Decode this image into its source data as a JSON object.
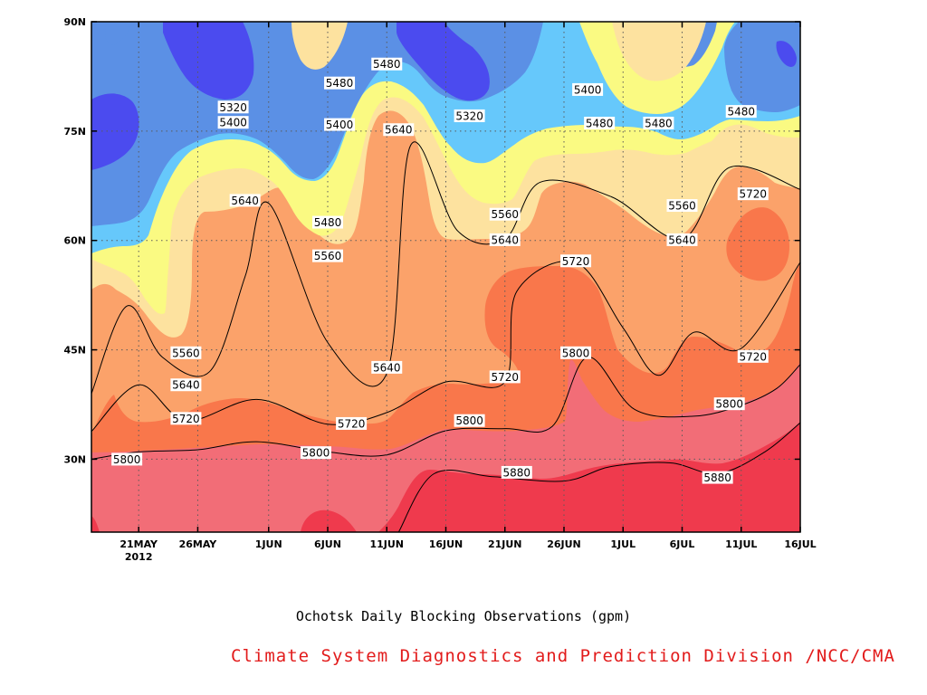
{
  "chart_data": {
    "type": "heatmap",
    "subtype": "filled-contour (time-latitude Hovmoller)",
    "title": "Ochotsk Daily Blocking Observations (gpm)",
    "credit": "Climate System Diagnostics and Prediction Division /NCC/CMA",
    "xlabel": "",
    "ylabel": "",
    "x_range": [
      "2012-05-17",
      "2012-07-16"
    ],
    "y_range": [
      20,
      90
    ],
    "x_ticks": [
      {
        "label": "21MAY",
        "sublabel": "2012",
        "date": "2012-05-21"
      },
      {
        "label": "26MAY",
        "date": "2012-05-26"
      },
      {
        "label": "1JUN",
        "date": "2012-06-01"
      },
      {
        "label": "6JUN",
        "date": "2012-06-06"
      },
      {
        "label": "11JUN",
        "date": "2012-06-11"
      },
      {
        "label": "16JUN",
        "date": "2012-06-16"
      },
      {
        "label": "21JUN",
        "date": "2012-06-21"
      },
      {
        "label": "26JUN",
        "date": "2012-06-26"
      },
      {
        "label": "1JUL",
        "date": "2012-07-01"
      },
      {
        "label": "6JUL",
        "date": "2012-07-06"
      },
      {
        "label": "11JUL",
        "date": "2012-07-11"
      },
      {
        "label": "16JUL",
        "date": "2012-07-16"
      }
    ],
    "y_ticks": [
      {
        "label": "30N",
        "value": 30
      },
      {
        "label": "45N",
        "value": 45
      },
      {
        "label": "60N",
        "value": 60
      },
      {
        "label": "75N",
        "value": 75
      },
      {
        "label": "90N",
        "value": 90
      }
    ],
    "grid": true,
    "levels": [
      5320,
      5400,
      5480,
      5560,
      5640,
      5720,
      5800,
      5880
    ],
    "colors": [
      "#4b4bef",
      "#5b90e5",
      "#66c8fb",
      "#fafa82",
      "#fde29f",
      "#fba26a",
      "#f9774b",
      "#f26d77",
      "#ef3a4d"
    ],
    "contours": [
      {
        "level": 5880,
        "points": [
          [
            "2012-06-12",
            20
          ],
          [
            "2012-06-15",
            28
          ],
          [
            "2012-06-20",
            27.6
          ],
          [
            "2012-06-26",
            27
          ],
          [
            "2012-06-30",
            29
          ],
          [
            "2012-07-05",
            29.5
          ],
          [
            "2012-07-09",
            28
          ],
          [
            "2012-07-13",
            31
          ],
          [
            "2012-07-16",
            35
          ]
        ]
      },
      {
        "level": 5800,
        "points": [
          [
            "2012-05-17",
            30
          ],
          [
            "2012-05-21",
            31
          ],
          [
            "2012-05-26",
            31.3
          ],
          [
            "2012-05-31",
            32.4
          ],
          [
            "2012-06-06",
            31
          ],
          [
            "2012-06-11",
            30.6
          ],
          [
            "2012-06-16",
            33.9
          ],
          [
            "2012-06-21",
            34.2
          ],
          [
            "2012-06-25",
            34.5
          ],
          [
            "2012-06-28",
            44
          ],
          [
            "2012-07-02",
            36.8
          ],
          [
            "2012-07-07",
            35.9
          ],
          [
            "2012-07-11",
            37.4
          ],
          [
            "2012-07-14",
            39.7
          ],
          [
            "2012-07-16",
            43
          ]
        ]
      },
      {
        "level": 5720,
        "points": [
          [
            "2012-05-17",
            33.8
          ],
          [
            "2012-05-21",
            40.2
          ],
          [
            "2012-05-25",
            35.3
          ],
          [
            "2012-05-31",
            38.2
          ],
          [
            "2012-06-06",
            34.8
          ],
          [
            "2012-06-11",
            36.4
          ],
          [
            "2012-06-16",
            40.6
          ],
          [
            "2012-06-21",
            40.6
          ],
          [
            "2012-06-22",
            53
          ],
          [
            "2012-06-27",
            57
          ],
          [
            "2012-07-01",
            48
          ],
          [
            "2012-07-04",
            41.5
          ],
          [
            "2012-07-07",
            47.4
          ],
          [
            "2012-07-11",
            45.2
          ],
          [
            "2012-07-16",
            57
          ]
        ]
      },
      {
        "level": 5640,
        "points": [
          [
            "2012-05-17",
            39
          ],
          [
            "2012-05-20",
            51
          ],
          [
            "2012-05-23",
            44
          ],
          [
            "2012-05-27",
            42
          ],
          [
            "2012-05-30",
            55
          ],
          [
            "2012-06-01",
            65.1
          ],
          [
            "2012-06-06",
            46
          ],
          [
            "2012-06-11",
            41.8
          ],
          [
            "2012-06-13",
            73
          ],
          [
            "2012-06-17",
            61.3
          ],
          [
            "2012-06-21",
            60.2
          ],
          [
            "2012-06-24",
            68
          ],
          [
            "2012-06-30",
            66
          ],
          [
            "2012-07-06",
            60.2
          ],
          [
            "2012-07-10",
            70
          ],
          [
            "2012-07-16",
            67
          ]
        ]
      }
    ]
  },
  "contour_labels": [
    {
      "text": "5320",
      "date": "2012-05-29",
      "lat": 78.3
    },
    {
      "text": "5400",
      "date": "2012-05-29",
      "lat": 76.2
    },
    {
      "text": "5480",
      "date": "2012-06-07",
      "lat": 81.6
    },
    {
      "text": "5400",
      "date": "2012-06-07",
      "lat": 75.9
    },
    {
      "text": "5480",
      "date": "2012-06-11",
      "lat": 84.2
    },
    {
      "text": "5640",
      "date": "2012-06-12",
      "lat": 75.2
    },
    {
      "text": "5320",
      "date": "2012-06-18",
      "lat": 77.1
    },
    {
      "text": "5400",
      "date": "2012-06-28",
      "lat": 80.7
    },
    {
      "text": "5480",
      "date": "2012-06-29",
      "lat": 76.1
    },
    {
      "text": "5480",
      "date": "2012-07-04",
      "lat": 76.1
    },
    {
      "text": "5480",
      "date": "2012-07-11",
      "lat": 77.7
    },
    {
      "text": "5640",
      "date": "2012-05-30",
      "lat": 65.5
    },
    {
      "text": "5480",
      "date": "2012-06-06",
      "lat": 62.5
    },
    {
      "text": "5560",
      "date": "2012-06-06",
      "lat": 57.9
    },
    {
      "text": "5560",
      "date": "2012-06-21",
      "lat": 63.6
    },
    {
      "text": "5640",
      "date": "2012-06-21",
      "lat": 60.1
    },
    {
      "text": "5560",
      "date": "2012-07-06",
      "lat": 64.8
    },
    {
      "text": "5640",
      "date": "2012-07-06",
      "lat": 60.1
    },
    {
      "text": "5720",
      "date": "2012-07-12",
      "lat": 66.4
    },
    {
      "text": "5720",
      "date": "2012-06-27",
      "lat": 57.2
    },
    {
      "text": "5560",
      "date": "2012-05-25",
      "lat": 44.6
    },
    {
      "text": "5640",
      "date": "2012-05-25",
      "lat": 40.2
    },
    {
      "text": "5720",
      "date": "2012-05-25",
      "lat": 35.6
    },
    {
      "text": "5640",
      "date": "2012-06-11",
      "lat": 42.6
    },
    {
      "text": "5720",
      "date": "2012-06-21",
      "lat": 41.3
    },
    {
      "text": "5800",
      "date": "2012-06-27",
      "lat": 44.6
    },
    {
      "text": "5720",
      "date": "2012-07-12",
      "lat": 44.1
    },
    {
      "text": "5720",
      "date": "2012-06-08",
      "lat": 34.9
    },
    {
      "text": "5800",
      "date": "2012-06-18",
      "lat": 35.3
    },
    {
      "text": "5800",
      "date": "2012-07-10",
      "lat": 37.6
    },
    {
      "text": "5800",
      "date": "2012-05-20",
      "lat": 30
    },
    {
      "text": "5800",
      "date": "2012-06-05",
      "lat": 30.9
    },
    {
      "text": "5880",
      "date": "2012-06-22",
      "lat": 28.2
    },
    {
      "text": "5880",
      "date": "2012-07-09",
      "lat": 27.5
    }
  ]
}
